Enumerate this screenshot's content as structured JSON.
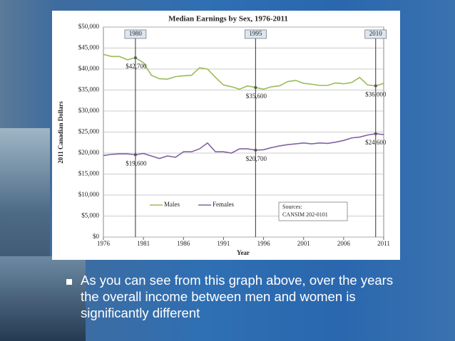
{
  "slide": {
    "bullet": "As you can see from this graph above, over the years the overall income between men and women is significantly different"
  },
  "chart_data": {
    "type": "line",
    "title": "Median Earnings by Sex, 1976-2011",
    "x_label": "Year",
    "y_label": "2011 Canadian Dollars",
    "x": [
      1976,
      1977,
      1978,
      1979,
      1980,
      1981,
      1982,
      1983,
      1984,
      1985,
      1986,
      1987,
      1988,
      1989,
      1990,
      1991,
      1992,
      1993,
      1994,
      1995,
      1996,
      1997,
      1998,
      1999,
      2000,
      2001,
      2002,
      2003,
      2004,
      2005,
      2006,
      2007,
      2008,
      2009,
      2010,
      2011
    ],
    "series": [
      {
        "name": "Males",
        "color": "#9bbb59",
        "values": [
          43500,
          43000,
          43000,
          42200,
          42700,
          41500,
          38500,
          37700,
          37600,
          38200,
          38400,
          38500,
          40300,
          40000,
          38000,
          36200,
          35800,
          35200,
          36000,
          35600,
          35200,
          35800,
          36000,
          37000,
          37300,
          36600,
          36400,
          36100,
          36100,
          36700,
          36500,
          36800,
          38000,
          36200,
          36000,
          36600
        ]
      },
      {
        "name": "Females",
        "color": "#8064a2",
        "values": [
          19400,
          19700,
          19800,
          19800,
          19600,
          19900,
          19300,
          18700,
          19300,
          19000,
          20300,
          20300,
          21000,
          22400,
          20300,
          20300,
          20000,
          21000,
          21000,
          20700,
          20800,
          21300,
          21700,
          22000,
          22200,
          22400,
          22200,
          22400,
          22300,
          22600,
          23000,
          23600,
          23800,
          24300,
          24600,
          24400
        ]
      }
    ],
    "xlim": [
      1976,
      2011
    ],
    "xticks": [
      1976,
      1981,
      1986,
      1991,
      1996,
      2001,
      2006,
      2011
    ],
    "ylim": [
      0,
      50000
    ],
    "yticks": [
      {
        "value": 0,
        "label": "$0"
      },
      {
        "value": 5000,
        "label": "$5,000"
      },
      {
        "value": 10000,
        "label": "$10,000"
      },
      {
        "value": 15000,
        "label": "$15,000"
      },
      {
        "value": 20000,
        "label": "$20,000"
      },
      {
        "value": 25000,
        "label": "$25,000"
      },
      {
        "value": 30000,
        "label": "$30,000"
      },
      {
        "value": 35000,
        "label": "$35,000"
      },
      {
        "value": 40000,
        "label": "$40,000"
      },
      {
        "value": 45000,
        "label": "$45,000"
      },
      {
        "value": 50000,
        "label": "$50,000"
      }
    ],
    "grid": true,
    "legend": "lower left",
    "markers": [
      {
        "x": 1980,
        "label": "1980"
      },
      {
        "x": 1995,
        "label": "1995"
      },
      {
        "x": 2010,
        "label": "2010"
      }
    ],
    "point_labels": [
      {
        "x": 1980,
        "y": 42700,
        "label": "$42,700"
      },
      {
        "x": 1995,
        "y": 35600,
        "label": "$35,600"
      },
      {
        "x": 2010,
        "y": 36000,
        "label": "$36,000"
      },
      {
        "x": 1980,
        "y": 19600,
        "label": "$19,600"
      },
      {
        "x": 1995,
        "y": 20700,
        "label": "$20,700"
      },
      {
        "x": 2010,
        "y": 24600,
        "label": "$24,600"
      }
    ],
    "source": [
      "Sources:",
      "CANSIM 202-0101"
    ]
  }
}
